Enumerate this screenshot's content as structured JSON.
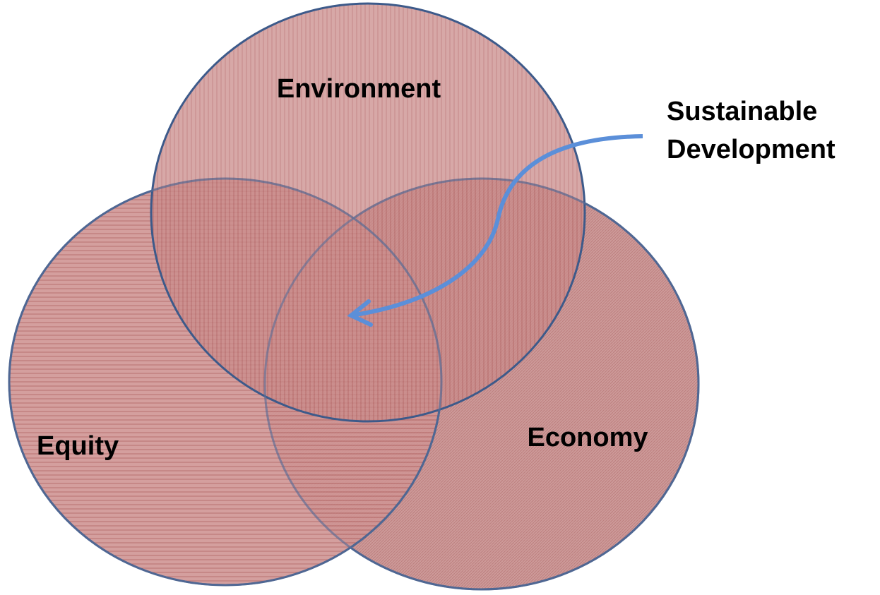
{
  "circles": [
    {
      "label": "Environment"
    },
    {
      "label": "Equity"
    },
    {
      "label": "Economy"
    }
  ],
  "annotation": {
    "lines": [
      "Sustainable",
      "Development"
    ]
  }
}
